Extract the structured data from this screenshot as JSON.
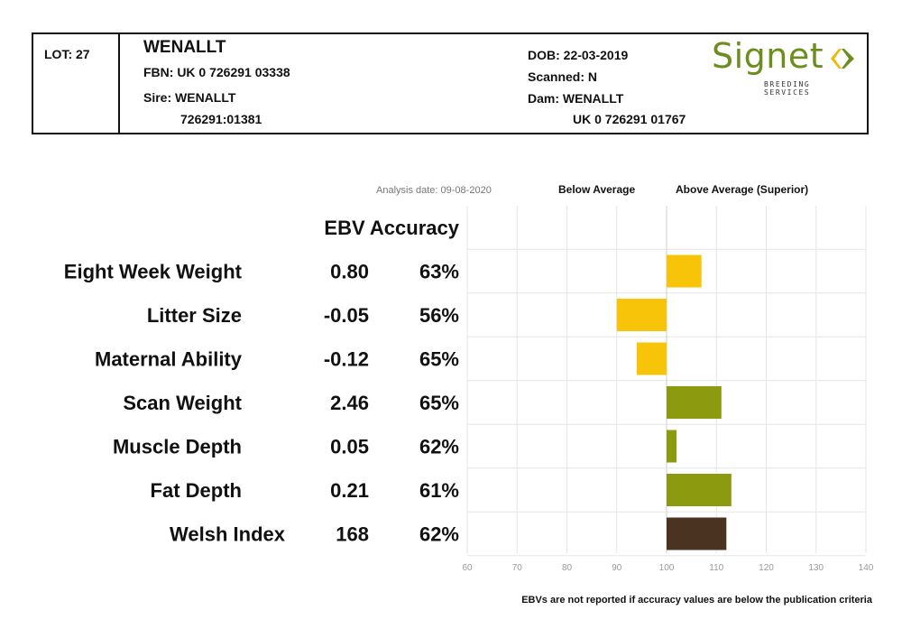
{
  "header": {
    "lot": "LOT: 27",
    "name": "WENALLT",
    "fbn": "FBN: UK 0 726291 03338",
    "sire_label": "Sire: WENALLT",
    "sire_id": "726291:01381",
    "dob": "DOB: 22-03-2019",
    "scanned": "Scanned: N",
    "dam_label": "Dam: WENALLT",
    "dam_id": "UK 0 726291 01767"
  },
  "logo": {
    "word": "Signet",
    "subtitle": "BREEDING SERVICES",
    "color": "#6b8e1e"
  },
  "analysis_date": "Analysis date: 09-08-2020",
  "below_label": "Below Average",
  "above_label": "Above Average (Superior)",
  "column_header": "EBV Accuracy",
  "footnote": "EBVs are not reported if accuracy values are below the publication criteria",
  "chart_data": {
    "type": "bar",
    "orientation": "horizontal",
    "baseline": 100,
    "xlim": [
      60,
      140
    ],
    "xticks": [
      60,
      70,
      80,
      90,
      100,
      110,
      120,
      130,
      140
    ],
    "grid": true,
    "rows": [
      {
        "label": "Eight Week Weight",
        "ebv": "0.80",
        "accuracy": "63%",
        "value": 107,
        "color": "#f7c40a"
      },
      {
        "label": "Litter Size",
        "ebv": "-0.05",
        "accuracy": "56%",
        "value": 90,
        "color": "#f7c40a"
      },
      {
        "label": "Maternal Ability",
        "ebv": "-0.12",
        "accuracy": "65%",
        "value": 94,
        "color": "#f7c40a"
      },
      {
        "label": "Scan Weight",
        "ebv": "2.46",
        "accuracy": "65%",
        "value": 111,
        "color": "#8c9a0f"
      },
      {
        "label": "Muscle Depth",
        "ebv": "0.05",
        "accuracy": "62%",
        "value": 102,
        "color": "#8c9a0f"
      },
      {
        "label": "Fat Depth",
        "ebv": "0.21",
        "accuracy": "61%",
        "value": 113,
        "color": "#8c9a0f"
      },
      {
        "label": "Welsh Index",
        "ebv": "168",
        "accuracy": "62%",
        "value": 112,
        "color": "#4a3421"
      }
    ]
  }
}
